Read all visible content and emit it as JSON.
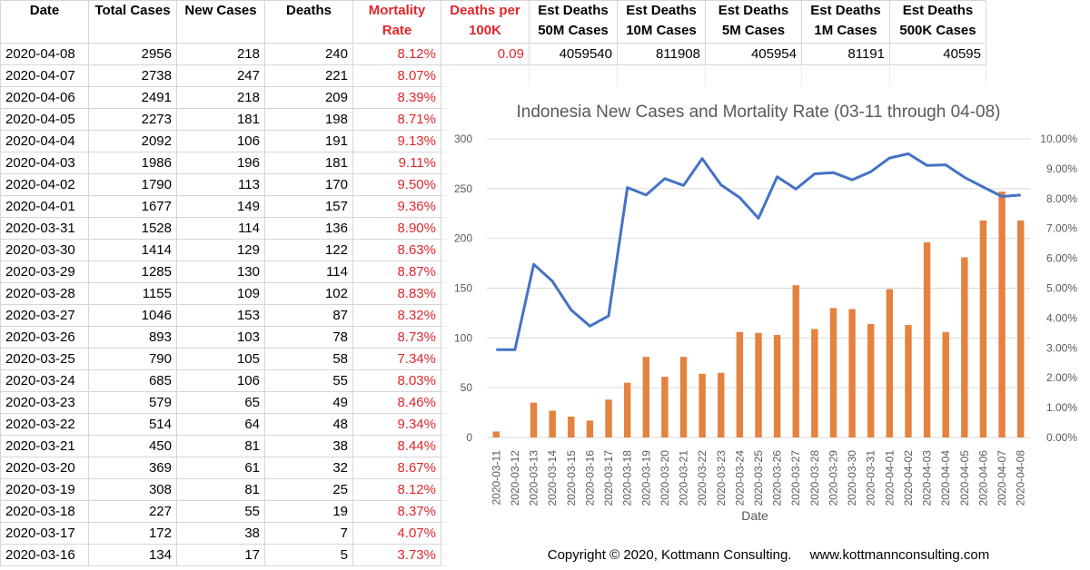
{
  "headers": [
    {
      "line1": "Date",
      "line2": "",
      "red": false
    },
    {
      "line1": "Total Cases",
      "line2": "",
      "red": false
    },
    {
      "line1": "New Cases",
      "line2": "",
      "red": false
    },
    {
      "line1": "Deaths",
      "line2": "",
      "red": false
    },
    {
      "line1": "Mortality",
      "line2": "Rate",
      "red": true
    },
    {
      "line1": "Deaths per",
      "line2": "100K",
      "red": true
    },
    {
      "line1": "Est Deaths",
      "line2": "50M Cases",
      "red": false
    },
    {
      "line1": "Est Deaths",
      "line2": "10M Cases",
      "red": false
    },
    {
      "line1": "Est Deaths",
      "line2": "5M Cases",
      "red": false
    },
    {
      "line1": "Est Deaths",
      "line2": "1M Cases",
      "red": false
    },
    {
      "line1": "Est Deaths",
      "line2": "500K Cases",
      "red": false
    }
  ],
  "estimates": {
    "deaths_per_100k": "0.09",
    "est_50m": "4059540",
    "est_10m": "811908",
    "est_5m": "405954",
    "est_1m": "81191",
    "est_500k": "40595"
  },
  "rows": [
    {
      "date": "2020-04-08",
      "total": "2956",
      "new": "218",
      "deaths": "240",
      "rate": "8.12%"
    },
    {
      "date": "2020-04-07",
      "total": "2738",
      "new": "247",
      "deaths": "221",
      "rate": "8.07%"
    },
    {
      "date": "2020-04-06",
      "total": "2491",
      "new": "218",
      "deaths": "209",
      "rate": "8.39%"
    },
    {
      "date": "2020-04-05",
      "total": "2273",
      "new": "181",
      "deaths": "198",
      "rate": "8.71%"
    },
    {
      "date": "2020-04-04",
      "total": "2092",
      "new": "106",
      "deaths": "191",
      "rate": "9.13%"
    },
    {
      "date": "2020-04-03",
      "total": "1986",
      "new": "196",
      "deaths": "181",
      "rate": "9.11%"
    },
    {
      "date": "2020-04-02",
      "total": "1790",
      "new": "113",
      "deaths": "170",
      "rate": "9.50%"
    },
    {
      "date": "2020-04-01",
      "total": "1677",
      "new": "149",
      "deaths": "157",
      "rate": "9.36%"
    },
    {
      "date": "2020-03-31",
      "total": "1528",
      "new": "114",
      "deaths": "136",
      "rate": "8.90%"
    },
    {
      "date": "2020-03-30",
      "total": "1414",
      "new": "129",
      "deaths": "122",
      "rate": "8.63%"
    },
    {
      "date": "2020-03-29",
      "total": "1285",
      "new": "130",
      "deaths": "114",
      "rate": "8.87%"
    },
    {
      "date": "2020-03-28",
      "total": "1155",
      "new": "109",
      "deaths": "102",
      "rate": "8.83%"
    },
    {
      "date": "2020-03-27",
      "total": "1046",
      "new": "153",
      "deaths": "87",
      "rate": "8.32%"
    },
    {
      "date": "2020-03-26",
      "total": "893",
      "new": "103",
      "deaths": "78",
      "rate": "8.73%"
    },
    {
      "date": "2020-03-25",
      "total": "790",
      "new": "105",
      "deaths": "58",
      "rate": "7.34%"
    },
    {
      "date": "2020-03-24",
      "total": "685",
      "new": "106",
      "deaths": "55",
      "rate": "8.03%"
    },
    {
      "date": "2020-03-23",
      "total": "579",
      "new": "65",
      "deaths": "49",
      "rate": "8.46%"
    },
    {
      "date": "2020-03-22",
      "total": "514",
      "new": "64",
      "deaths": "48",
      "rate": "9.34%"
    },
    {
      "date": "2020-03-21",
      "total": "450",
      "new": "81",
      "deaths": "38",
      "rate": "8.44%"
    },
    {
      "date": "2020-03-20",
      "total": "369",
      "new": "61",
      "deaths": "32",
      "rate": "8.67%"
    },
    {
      "date": "2020-03-19",
      "total": "308",
      "new": "81",
      "deaths": "25",
      "rate": "8.12%"
    },
    {
      "date": "2020-03-18",
      "total": "227",
      "new": "55",
      "deaths": "19",
      "rate": "8.37%"
    },
    {
      "date": "2020-03-17",
      "total": "172",
      "new": "38",
      "deaths": "7",
      "rate": "4.07%"
    },
    {
      "date": "2020-03-16",
      "total": "134",
      "new": "17",
      "deaths": "5",
      "rate": "3.73%"
    }
  ],
  "colors": {
    "red_text": "#e0262b",
    "bar": "#e4823f",
    "line": "#4472c4",
    "grid": "#d9d9d9",
    "axis_text": "#595959"
  },
  "footer": {
    "copyright": "Copyright © 2020, Kottmann Consulting.",
    "url": "www.kottmannconsulting.com"
  },
  "chart_data": {
    "type": "bar",
    "title": "Indonesia New Cases and Mortality Rate (03-11 through 04-08)",
    "xlabel": "Date",
    "ylabel": "",
    "ylim": [
      0,
      300
    ],
    "y_ticks": [
      0,
      50,
      100,
      150,
      200,
      250,
      300
    ],
    "y2lim": [
      0,
      10
    ],
    "y2_ticks": [
      "0.00%",
      "1.00%",
      "2.00%",
      "3.00%",
      "4.00%",
      "5.00%",
      "6.00%",
      "7.00%",
      "8.00%",
      "9.00%",
      "10.00%"
    ],
    "grid": true,
    "legend": "none",
    "categories": [
      "2020-03-11",
      "2020-03-12",
      "2020-03-13",
      "2020-03-14",
      "2020-03-15",
      "2020-03-16",
      "2020-03-17",
      "2020-03-18",
      "2020-03-19",
      "2020-03-20",
      "2020-03-21",
      "2020-03-22",
      "2020-03-23",
      "2020-03-24",
      "2020-03-25",
      "2020-03-26",
      "2020-03-27",
      "2020-03-28",
      "2020-03-29",
      "2020-03-30",
      "2020-03-31",
      "2020-04-01",
      "2020-04-02",
      "2020-04-03",
      "2020-04-04",
      "2020-04-05",
      "2020-04-06",
      "2020-04-07",
      "2020-04-08"
    ],
    "series": [
      {
        "kind": "bar",
        "axis": "left",
        "values": [
          6,
          0,
          35,
          27,
          21,
          17,
          38,
          55,
          81,
          61,
          81,
          64,
          65,
          106,
          105,
          103,
          153,
          109,
          130,
          129,
          114,
          149,
          113,
          196,
          106,
          181,
          218,
          247,
          218
        ]
      },
      {
        "kind": "line",
        "axis": "right",
        "values": [
          2.94,
          2.94,
          5.8,
          5.23,
          4.27,
          3.73,
          4.07,
          8.37,
          8.12,
          8.67,
          8.44,
          9.34,
          8.46,
          8.03,
          7.34,
          8.73,
          8.32,
          8.83,
          8.87,
          8.63,
          8.9,
          9.36,
          9.5,
          9.11,
          9.13,
          8.71,
          8.39,
          8.07,
          8.12
        ]
      }
    ]
  }
}
